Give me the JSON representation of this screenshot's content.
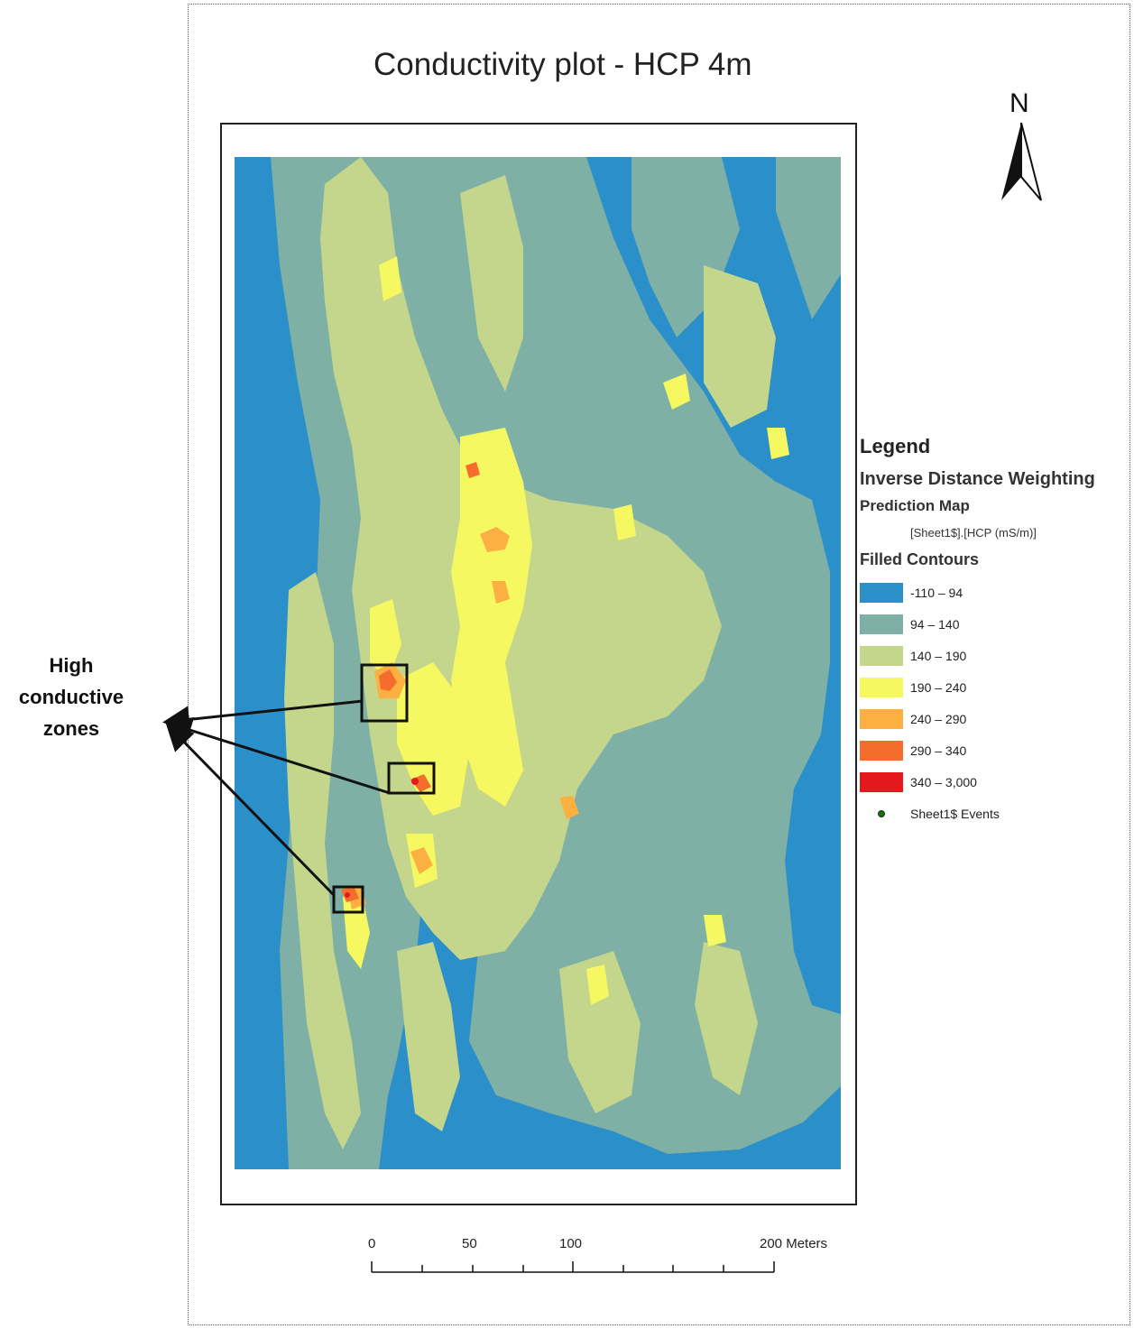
{
  "title": "Conductivity plot - HCP 4m",
  "north_label": "N",
  "annotation": {
    "line1": "High",
    "line2": "conductive",
    "line3": "zones"
  },
  "legend": {
    "title": "Legend",
    "layer": "Inverse Distance Weighting",
    "sublayer": "Prediction Map",
    "field": "[Sheet1$].[HCP (mS/m)]",
    "contours_heading": "Filled Contours",
    "classes": [
      {
        "label": "-110 – 94",
        "color": "#2b8fc9"
      },
      {
        "label": "94 – 140",
        "color": "#7fb0a5"
      },
      {
        "label": "140 – 190",
        "color": "#c3d68c"
      },
      {
        "label": "190 – 240",
        "color": "#f6f862"
      },
      {
        "label": "240 – 290",
        "color": "#fbb041"
      },
      {
        "label": "290 – 340",
        "color": "#f56d2c"
      },
      {
        "label": "340 – 3,000",
        "color": "#e31a1c"
      }
    ],
    "events_label": "Sheet1$ Events"
  },
  "scalebar": {
    "labels": [
      "0",
      "50",
      "100",
      "200 Meters"
    ]
  }
}
